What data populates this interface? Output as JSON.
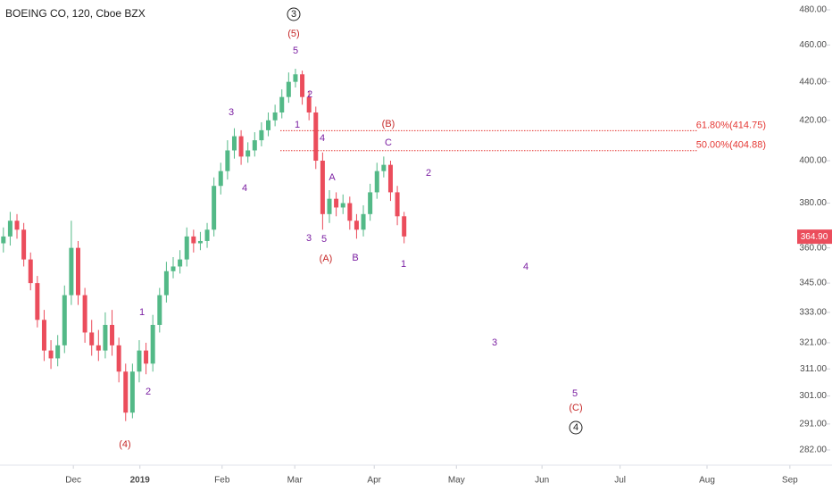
{
  "chart_data": {
    "type": "candlestick",
    "title": "BOEING CO, 120, Cboe BZX",
    "log_scale": true,
    "up_color": "#53b987",
    "down_color": "#eb4d5c",
    "x": [
      0,
      1,
      2,
      3,
      4,
      5,
      6,
      7,
      8,
      9,
      10,
      11,
      12,
      13,
      14,
      15,
      16,
      17,
      18,
      19,
      20,
      21,
      22,
      23,
      24,
      25,
      26,
      27,
      28,
      29,
      30,
      31,
      32,
      33,
      34,
      35,
      36,
      37,
      38,
      39,
      40,
      41,
      42,
      43,
      44,
      45,
      46,
      47,
      48,
      49,
      50,
      51,
      52,
      53,
      54,
      55,
      56,
      57,
      58,
      59
    ],
    "open": [
      362,
      365,
      372,
      368,
      355,
      345,
      330,
      318,
      315,
      320,
      340,
      360,
      340,
      325,
      320,
      318,
      328,
      320,
      310,
      295,
      310,
      318,
      313,
      328,
      340,
      350,
      352,
      355,
      365,
      362,
      363,
      368,
      388,
      395,
      405,
      412,
      402,
      405,
      410,
      415,
      420,
      424,
      432,
      440,
      444,
      432,
      424,
      400,
      375,
      382,
      378,
      380,
      372,
      368,
      375,
      385,
      395,
      398,
      385,
      374
    ],
    "high": [
      369,
      376,
      375,
      371,
      358,
      348,
      334,
      322,
      324,
      344,
      372,
      363,
      343,
      330,
      326,
      333,
      334,
      323,
      313,
      313,
      322,
      321,
      332,
      343,
      354,
      356,
      359,
      369,
      368,
      367,
      371,
      392,
      399,
      410,
      416,
      415,
      409,
      414,
      419,
      424,
      428,
      436,
      445,
      447,
      446,
      435,
      427,
      404,
      386,
      385,
      384,
      383,
      375,
      379,
      389,
      399,
      402,
      400,
      388,
      376
    ],
    "low": [
      358,
      361,
      364,
      352,
      342,
      327,
      314,
      311,
      312,
      317,
      336,
      336,
      321,
      316,
      314,
      315,
      316,
      306,
      292,
      293,
      306,
      309,
      310,
      325,
      337,
      347,
      349,
      352,
      358,
      359,
      360,
      365,
      384,
      391,
      401,
      398,
      399,
      402,
      407,
      412,
      417,
      421,
      429,
      437,
      428,
      420,
      396,
      368,
      371,
      374,
      375,
      368,
      364,
      365,
      372,
      382,
      392,
      381,
      370,
      362
    ],
    "close": [
      365,
      372,
      368,
      355,
      345,
      330,
      318,
      315,
      320,
      340,
      360,
      340,
      325,
      320,
      318,
      328,
      320,
      310,
      295,
      310,
      318,
      313,
      328,
      340,
      350,
      352,
      355,
      365,
      362,
      363,
      368,
      388,
      395,
      405,
      412,
      402,
      405,
      410,
      415,
      420,
      424,
      432,
      440,
      444,
      432,
      424,
      400,
      375,
      382,
      378,
      380,
      372,
      368,
      375,
      385,
      395,
      398,
      385,
      374,
      365
    ],
    "xlim": [
      -0.5,
      122
    ],
    "xticks": [
      {
        "value": 10.3,
        "label": "Dec"
      },
      {
        "value": 20.1,
        "label": "2019"
      },
      {
        "value": 32.2,
        "label": "Feb"
      },
      {
        "value": 42.9,
        "label": "Mar"
      },
      {
        "value": 54.6,
        "label": "Apr"
      },
      {
        "value": 66.7,
        "label": "May"
      },
      {
        "value": 79.3,
        "label": "Jun"
      },
      {
        "value": 90.8,
        "label": "Jul"
      },
      {
        "value": 103.6,
        "label": "Aug"
      },
      {
        "value": 115.8,
        "label": "Sep"
      }
    ],
    "ylim": [
      282,
      480
    ],
    "yticks": [
      {
        "value": 480,
        "label": "480.00"
      },
      {
        "value": 460,
        "label": "460.00"
      },
      {
        "value": 440,
        "label": "440.00"
      },
      {
        "value": 420,
        "label": "420.00"
      },
      {
        "value": 400,
        "label": "400.00"
      },
      {
        "value": 380,
        "label": "380.00"
      },
      {
        "value": 360,
        "label": "360.00"
      },
      {
        "value": 345,
        "label": "345.00"
      },
      {
        "value": 333,
        "label": "333.00"
      },
      {
        "value": 321,
        "label": "321.00"
      },
      {
        "value": 311,
        "label": "311.00"
      },
      {
        "value": 301,
        "label": "301.00"
      },
      {
        "value": 291,
        "label": "291.00"
      },
      {
        "value": 282,
        "label": "282.00"
      }
    ],
    "last_price": {
      "value": 364.9,
      "label": "364.90",
      "color": "#eb4d5c"
    },
    "fib_levels": [
      {
        "value": 414.75,
        "label": "61.80%(414.75)",
        "color": "#e53935"
      },
      {
        "value": 404.88,
        "label": "50.00%(404.88)",
        "color": "#e53935"
      }
    ],
    "annotations": [
      {
        "text": "3",
        "color": "#222222"
      },
      {
        "text": "(5)",
        "color": "#c62828"
      },
      {
        "text": "5",
        "color": "#7b1fa2"
      },
      {
        "text": "2",
        "color": "#7b1fa2"
      },
      {
        "text": "3",
        "color": "#7b1fa2"
      },
      {
        "text": "1",
        "color": "#7b1fa2"
      },
      {
        "text": "4",
        "color": "#7b1fa2"
      },
      {
        "text": "(B)",
        "color": "#c62828"
      },
      {
        "text": "C",
        "color": "#7b1fa2"
      },
      {
        "text": "2",
        "color": "#7b1fa2"
      },
      {
        "text": "4",
        "color": "#7b1fa2"
      },
      {
        "text": "A",
        "color": "#7b1fa2"
      },
      {
        "text": "3",
        "color": "#7b1fa2"
      },
      {
        "text": "5",
        "color": "#7b1fa2"
      },
      {
        "text": "(A)",
        "color": "#c62828"
      },
      {
        "text": "B",
        "color": "#7b1fa2"
      },
      {
        "text": "1",
        "color": "#7b1fa2"
      },
      {
        "text": "4",
        "color": "#7b1fa2"
      },
      {
        "text": "1",
        "color": "#7b1fa2"
      },
      {
        "text": "3",
        "color": "#7b1fa2"
      },
      {
        "text": "2",
        "color": "#7b1fa2"
      },
      {
        "text": "5",
        "color": "#7b1fa2"
      },
      {
        "text": "(C)",
        "color": "#c62828"
      },
      {
        "text": "4",
        "color": "#222222"
      },
      {
        "text": "(4)",
        "color": "#c62828"
      }
    ]
  }
}
